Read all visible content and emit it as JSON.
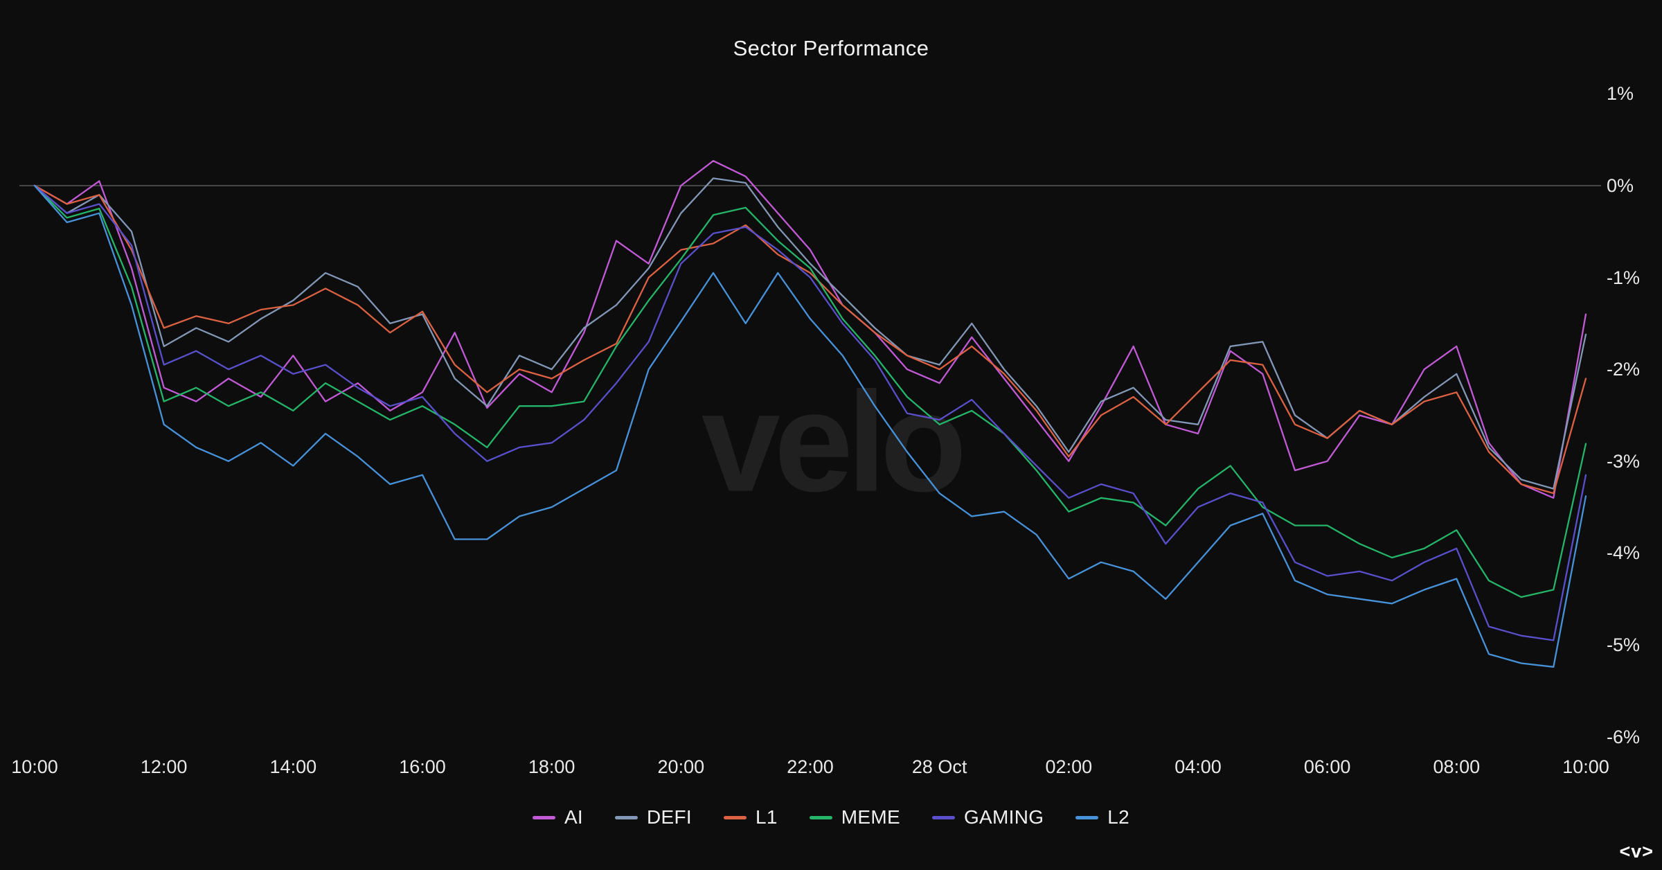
{
  "page": {
    "background": "#0d0d0e"
  },
  "watermark": {
    "text": "velo"
  },
  "logo": {
    "text": "<v>"
  },
  "chart_data": {
    "type": "line",
    "title": "Sector Performance",
    "xlabel": "",
    "ylabel": "",
    "grid": "zero-line-only",
    "zero_line_color": "#575757",
    "legend_position": "bottom",
    "ylim": [
      -6.6,
      1.4
    ],
    "y_tick_labels": [
      "1%",
      "0%",
      "-1%",
      "-2%",
      "-3%",
      "-4%",
      "-5%",
      "-6%"
    ],
    "y_tick_values": [
      1,
      0,
      -1,
      -2,
      -3,
      -4,
      -5,
      -6
    ],
    "x_tick_labels": [
      "10:00",
      "12:00",
      "14:00",
      "16:00",
      "18:00",
      "20:00",
      "22:00",
      "28 Oct",
      "02:00",
      "04:00",
      "06:00",
      "08:00",
      "10:00"
    ],
    "x_range_hours": 24,
    "sample_interval_minutes": 30,
    "unit": "percent",
    "series": [
      {
        "name": "AI",
        "color": "#c25ad6",
        "values": [
          0.0,
          -0.2,
          0.05,
          -0.9,
          -2.2,
          -2.35,
          -2.1,
          -2.3,
          -1.85,
          -2.35,
          -2.15,
          -2.45,
          -2.25,
          -1.6,
          -2.42,
          -2.05,
          -2.25,
          -1.6,
          -0.6,
          -0.85,
          0.0,
          0.27,
          0.1,
          -0.3,
          -0.7,
          -1.3,
          -1.6,
          -2.0,
          -2.15,
          -1.65,
          -2.1,
          -2.55,
          -3.0,
          -2.4,
          -1.75,
          -2.6,
          -2.7,
          -1.8,
          -2.05,
          -3.1,
          -3.0,
          -2.5,
          -2.6,
          -2.0,
          -1.75,
          -2.8,
          -3.25,
          -3.4,
          -1.4
        ]
      },
      {
        "name": "DEFI",
        "color": "#8298b6",
        "values": [
          0.0,
          -0.3,
          -0.1,
          -0.5,
          -1.75,
          -1.55,
          -1.7,
          -1.45,
          -1.25,
          -0.95,
          -1.1,
          -1.5,
          -1.4,
          -2.1,
          -2.4,
          -1.85,
          -2.0,
          -1.55,
          -1.3,
          -0.9,
          -0.3,
          0.08,
          0.03,
          -0.45,
          -0.85,
          -1.2,
          -1.55,
          -1.85,
          -1.95,
          -1.5,
          -2.0,
          -2.4,
          -2.9,
          -2.35,
          -2.2,
          -2.55,
          -2.6,
          -1.75,
          -1.7,
          -2.5,
          -2.75,
          -2.45,
          -2.6,
          -2.3,
          -2.05,
          -2.85,
          -3.2,
          -3.3,
          -1.62
        ]
      },
      {
        "name": "L1",
        "color": "#dc6243",
        "values": [
          0.0,
          -0.2,
          -0.1,
          -0.7,
          -1.55,
          -1.42,
          -1.5,
          -1.35,
          -1.3,
          -1.12,
          -1.3,
          -1.6,
          -1.37,
          -1.95,
          -2.25,
          -2.0,
          -2.1,
          -1.9,
          -1.72,
          -1.0,
          -0.7,
          -0.63,
          -0.43,
          -0.75,
          -0.95,
          -1.3,
          -1.6,
          -1.85,
          -2.0,
          -1.75,
          -2.05,
          -2.45,
          -2.95,
          -2.5,
          -2.3,
          -2.6,
          -2.25,
          -1.9,
          -1.95,
          -2.6,
          -2.75,
          -2.45,
          -2.6,
          -2.35,
          -2.25,
          -2.9,
          -3.25,
          -3.35,
          -2.1
        ]
      },
      {
        "name": "MEME",
        "color": "#25b568",
        "values": [
          0.0,
          -0.35,
          -0.25,
          -1.1,
          -2.35,
          -2.2,
          -2.4,
          -2.25,
          -2.45,
          -2.15,
          -2.35,
          -2.55,
          -2.4,
          -2.6,
          -2.85,
          -2.4,
          -2.4,
          -2.35,
          -1.75,
          -1.25,
          -0.8,
          -0.32,
          -0.24,
          -0.6,
          -0.9,
          -1.45,
          -1.85,
          -2.3,
          -2.6,
          -2.45,
          -2.7,
          -3.1,
          -3.55,
          -3.4,
          -3.45,
          -3.7,
          -3.3,
          -3.05,
          -3.5,
          -3.7,
          -3.7,
          -3.9,
          -4.05,
          -3.95,
          -3.75,
          -4.3,
          -4.48,
          -4.4,
          -2.81
        ]
      },
      {
        "name": "GAMING",
        "color": "#5a50cc",
        "values": [
          0.0,
          -0.3,
          -0.2,
          -0.65,
          -1.95,
          -1.8,
          -2.0,
          -1.85,
          -2.05,
          -1.95,
          -2.2,
          -2.4,
          -2.3,
          -2.7,
          -3.0,
          -2.85,
          -2.8,
          -2.55,
          -2.15,
          -1.7,
          -0.85,
          -0.52,
          -0.45,
          -0.7,
          -1.0,
          -1.5,
          -1.9,
          -2.48,
          -2.55,
          -2.33,
          -2.7,
          -3.05,
          -3.4,
          -3.25,
          -3.35,
          -3.9,
          -3.5,
          -3.35,
          -3.45,
          -4.1,
          -4.25,
          -4.2,
          -4.3,
          -4.1,
          -3.95,
          -4.8,
          -4.9,
          -4.95,
          -3.15
        ]
      },
      {
        "name": "L2",
        "color": "#4792d9",
        "values": [
          0.0,
          -0.4,
          -0.3,
          -1.3,
          -2.6,
          -2.85,
          -3.0,
          -2.8,
          -3.05,
          -2.7,
          -2.95,
          -3.25,
          -3.15,
          -3.85,
          -3.85,
          -3.6,
          -3.5,
          -3.3,
          -3.1,
          -2.0,
          -1.48,
          -0.95,
          -1.5,
          -0.95,
          -1.45,
          -1.85,
          -2.4,
          -2.9,
          -3.35,
          -3.6,
          -3.55,
          -3.8,
          -4.28,
          -4.1,
          -4.2,
          -4.5,
          -4.1,
          -3.7,
          -3.57,
          -4.3,
          -4.45,
          -4.5,
          -4.55,
          -4.4,
          -4.28,
          -5.1,
          -5.2,
          -5.24,
          -3.38
        ]
      }
    ]
  }
}
